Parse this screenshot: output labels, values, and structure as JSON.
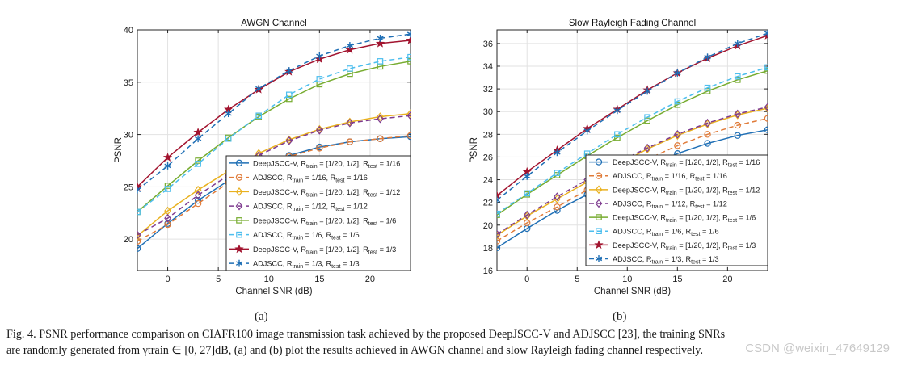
{
  "chart_data": [
    {
      "type": "line",
      "title": "AWGN Channel",
      "xlabel": "Channel SNR (dB)",
      "ylabel": "PSNR",
      "xlim": [
        -3,
        24
      ],
      "ylim": [
        17,
        40
      ],
      "xticks": [
        0,
        5,
        10,
        15,
        20
      ],
      "yticks": [
        20,
        25,
        30,
        35,
        40
      ],
      "grid": true,
      "legend_position": "bottom-right",
      "x": [
        -3,
        0,
        3,
        6,
        9,
        12,
        15,
        18,
        21,
        24
      ],
      "series": [
        {
          "name": "DeepJSCC-V, R_train = [1/20, 1/2], R_test = 1/16",
          "legend": [
            "DeepJSCC-V, R",
            "train",
            " = [1/20, 1/2], R",
            "test",
            " = 1/16"
          ],
          "color": "#1f6fb5",
          "dash": false,
          "marker": "circle",
          "values": [
            19.1,
            21.5,
            23.7,
            25.6,
            27.0,
            28.0,
            28.8,
            29.3,
            29.6,
            29.8
          ]
        },
        {
          "name": "ADJSCC, R_train = 1/16, R_test = 1/16",
          "legend": [
            "ADJSCC, R",
            "train",
            " = 1/16, R",
            "test",
            " = 1/16"
          ],
          "color": "#e07b39",
          "dash": true,
          "marker": "circle",
          "values": [
            19.8,
            21.4,
            23.4,
            25.4,
            26.8,
            27.9,
            28.7,
            29.3,
            29.6,
            29.9
          ]
        },
        {
          "name": "DeepJSCC-V, R_train = [1/20, 1/2], R_test = 1/12",
          "legend": [
            "DeepJSCC-V, R",
            "train",
            " = [1/20, 1/2], R",
            "test",
            " = 1/12"
          ],
          "color": "#e9b11f",
          "dash": false,
          "marker": "diamond",
          "values": [
            20.3,
            22.7,
            24.7,
            26.5,
            28.2,
            29.5,
            30.5,
            31.2,
            31.7,
            32.0
          ]
        },
        {
          "name": "ADJSCC, R_train = 1/12, R_test = 1/12",
          "legend": [
            "ADJSCC, R",
            "train",
            " = 1/12, R",
            "test",
            " = 1/12"
          ],
          "color": "#7e3b8f",
          "dash": true,
          "marker": "diamond",
          "values": [
            20.4,
            22.0,
            24.2,
            26.1,
            28.0,
            29.4,
            30.4,
            31.1,
            31.5,
            31.8
          ]
        },
        {
          "name": "DeepJSCC-V, R_train = [1/20, 1/2], R_test = 1/6",
          "legend": [
            "DeepJSCC-V, R",
            "train",
            " = [1/20, 1/2], R",
            "test",
            " = 1/6"
          ],
          "color": "#77ac30",
          "dash": false,
          "marker": "square",
          "values": [
            22.6,
            25.1,
            27.5,
            29.7,
            31.7,
            33.4,
            34.8,
            35.8,
            36.5,
            37.0
          ]
        },
        {
          "name": "ADJSCC, R_train = 1/6, R_test = 1/6",
          "legend": [
            "ADJSCC, R",
            "train",
            " = 1/6, R",
            "test",
            " = 1/6"
          ],
          "color": "#4dbeee",
          "dash": true,
          "marker": "square",
          "values": [
            22.6,
            24.8,
            27.2,
            29.6,
            31.8,
            33.8,
            35.3,
            36.3,
            37.0,
            37.4
          ]
        },
        {
          "name": "DeepJSCC-V, R_train = [1/20, 1/2], R_test = 1/3",
          "legend": [
            "DeepJSCC-V, R",
            "train",
            " = [1/20, 1/2], R",
            "test",
            " = 1/3"
          ],
          "color": "#a2142f",
          "dash": false,
          "marker": "star",
          "values": [
            25.0,
            27.8,
            30.2,
            32.4,
            34.3,
            36.0,
            37.2,
            38.1,
            38.7,
            39.0
          ]
        },
        {
          "name": "ADJSCC, R_train = 1/3, R_test = 1/3",
          "legend": [
            "ADJSCC, R",
            "train",
            " = 1/3, R",
            "test",
            " = 1/3"
          ],
          "color": "#1f6fb5",
          "dash": true,
          "marker": "asterisk",
          "values": [
            24.7,
            27.0,
            29.6,
            32.0,
            34.4,
            36.1,
            37.5,
            38.5,
            39.2,
            39.6
          ]
        }
      ]
    },
    {
      "type": "line",
      "title": "Slow Rayleigh Fading Channel",
      "xlabel": "Channel SNR (dB)",
      "ylabel": "PSNR",
      "xlim": [
        -3,
        24
      ],
      "ylim": [
        16,
        37.2
      ],
      "xticks": [
        0,
        5,
        10,
        15,
        20
      ],
      "yticks": [
        16,
        18,
        20,
        22,
        24,
        26,
        28,
        30,
        32,
        34,
        36
      ],
      "grid": true,
      "legend_position": "bottom-right",
      "x": [
        -3,
        0,
        3,
        6,
        9,
        12,
        15,
        18,
        21,
        24
      ],
      "series": [
        {
          "name": "DeepJSCC-V, R_train = [1/20, 1/2], R_test = 1/16",
          "legend": [
            "DeepJSCC-V, R",
            "train",
            " = [1/20, 1/2], R",
            "test",
            " = 1/16"
          ],
          "color": "#1f6fb5",
          "dash": false,
          "marker": "circle",
          "values": [
            18.0,
            19.7,
            21.3,
            22.7,
            24.0,
            25.2,
            26.3,
            27.2,
            27.9,
            28.4
          ]
        },
        {
          "name": "ADJSCC, R_train = 1/16, R_test = 1/16",
          "legend": [
            "ADJSCC, R",
            "train",
            " = 1/16, R",
            "test",
            " = 1/16"
          ],
          "color": "#e07b39",
          "dash": true,
          "marker": "circle",
          "values": [
            18.6,
            20.2,
            21.6,
            23.1,
            24.5,
            25.8,
            27.0,
            28.0,
            28.8,
            29.4
          ]
        },
        {
          "name": "DeepJSCC-V, R_train = [1/20, 1/2], R_test = 1/12",
          "legend": [
            "DeepJSCC-V, R",
            "train",
            " = [1/20, 1/2], R",
            "test",
            " = 1/12"
          ],
          "color": "#e9b11f",
          "dash": false,
          "marker": "diamond",
          "values": [
            19.1,
            20.8,
            22.3,
            23.8,
            25.3,
            26.7,
            27.9,
            28.9,
            29.7,
            30.3
          ]
        },
        {
          "name": "ADJSCC, R_train = 1/12, R_test = 1/12",
          "legend": [
            "ADJSCC, R",
            "train",
            " = 1/12, R",
            "test",
            " = 1/12"
          ],
          "color": "#7e3b8f",
          "dash": true,
          "marker": "diamond",
          "values": [
            19.2,
            20.9,
            22.5,
            24.0,
            25.5,
            26.8,
            28.0,
            29.0,
            29.8,
            30.4
          ]
        },
        {
          "name": "DeepJSCC-V, R_train = [1/20, 1/2], R_test = 1/6",
          "legend": [
            "DeepJSCC-V, R",
            "train",
            " = [1/20, 1/2], R",
            "test",
            " = 1/6"
          ],
          "color": "#77ac30",
          "dash": false,
          "marker": "square",
          "values": [
            20.9,
            22.7,
            24.4,
            26.1,
            27.7,
            29.2,
            30.6,
            31.8,
            32.8,
            33.6
          ]
        },
        {
          "name": "ADJSCC, R_train = 1/6, R_test = 1/6",
          "legend": [
            "ADJSCC, R",
            "train",
            " = 1/6, R",
            "test",
            " = 1/6"
          ],
          "color": "#4dbeee",
          "dash": true,
          "marker": "square",
          "values": [
            21.0,
            22.8,
            24.6,
            26.3,
            28.0,
            29.5,
            30.9,
            32.1,
            33.1,
            33.9
          ]
        },
        {
          "name": "DeepJSCC-V, R_train = [1/20, 1/2], R_test = 1/3",
          "legend": [
            "DeepJSCC-V, R",
            "train",
            " = [1/20, 1/2], R",
            "test",
            " = 1/3"
          ],
          "color": "#a2142f",
          "dash": false,
          "marker": "star",
          "values": [
            22.6,
            24.7,
            26.6,
            28.5,
            30.2,
            31.9,
            33.4,
            34.7,
            35.8,
            36.7
          ]
        },
        {
          "name": "ADJSCC, R_train = 1/3, R_test = 1/3",
          "legend": [
            "ADJSCC, R",
            "train",
            " = 1/3, R",
            "test",
            " = 1/3"
          ],
          "color": "#1f6fb5",
          "dash": true,
          "marker": "asterisk",
          "values": [
            22.2,
            24.3,
            26.4,
            28.3,
            30.1,
            31.8,
            33.4,
            34.8,
            36.0,
            36.9
          ]
        }
      ]
    }
  ],
  "subcaptions": [
    "(a)",
    "(b)"
  ],
  "caption": {
    "line1": "Fig. 4.   PSNR performance comparison on CIAFR100 image transmission task achieved by the proposed DeepJSCC-V and ADJSCC [23], the training SNRs",
    "line2": "are randomly generated from γtrain ∈ [0, 27]dB, (a) and (b) plot the results achieved in AWGN channel and slow Rayleigh fading channel respectively."
  },
  "watermark": "CSDN @weixin_47649129"
}
